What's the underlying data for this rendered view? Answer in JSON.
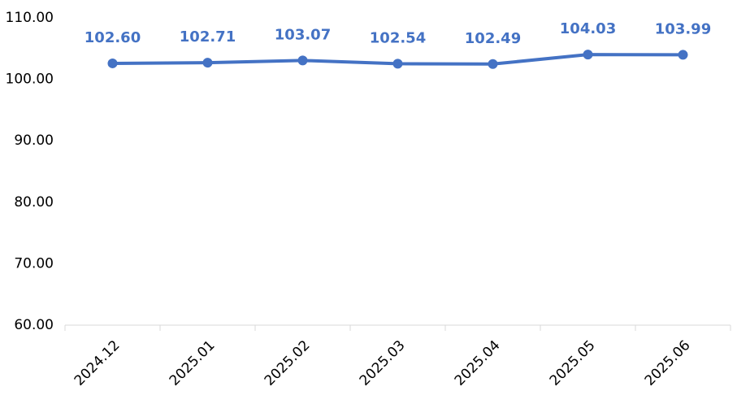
{
  "chart_data": {
    "type": "line",
    "categories": [
      "2024.12",
      "2025.01",
      "2025.02",
      "2025.03",
      "2025.04",
      "2025.05",
      "2025.06"
    ],
    "values": [
      102.6,
      102.71,
      103.07,
      102.54,
      102.49,
      104.03,
      103.99
    ],
    "value_labels": [
      "102.60",
      "102.71",
      "103.07",
      "102.54",
      "102.49",
      "104.03",
      "103.99"
    ],
    "color": "#4472c4",
    "ylim": [
      60,
      110
    ],
    "yticks": [
      {
        "value": 60,
        "label": "60.00"
      },
      {
        "value": 70,
        "label": "70.00"
      },
      {
        "value": 80,
        "label": "80.00"
      },
      {
        "value": 90,
        "label": "90.00"
      },
      {
        "value": 100,
        "label": "100.00"
      },
      {
        "value": 110,
        "label": "110.00"
      }
    ],
    "grid": false
  }
}
